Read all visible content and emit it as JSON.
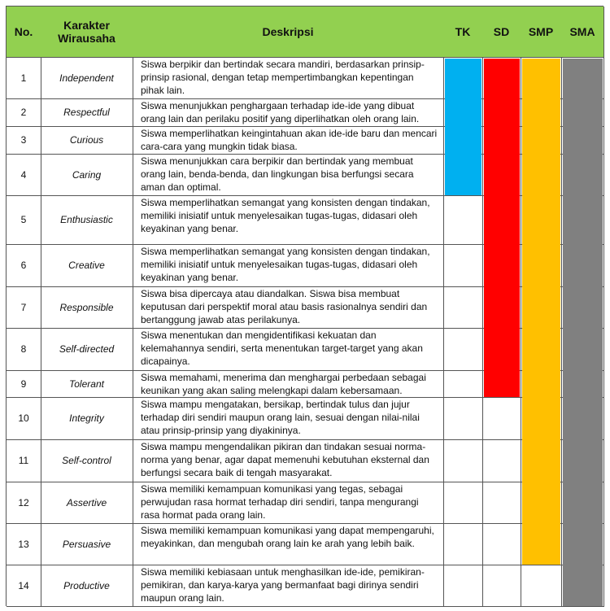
{
  "table": {
    "header": [
      "No.",
      "Karakter Wirausaha",
      "Deskripsi",
      "TK",
      "SD",
      "SMP",
      "SMA"
    ],
    "rows": [
      [
        1,
        "Independent",
        "Siswa berpikir dan bertindak secara mandiri, berdasarkan prinsip-prinsip rasional, dengan tetap mempertimbangkan kepentingan pihak lain."
      ],
      [
        2,
        "Respectful",
        "Siswa menunjukkan penghargaan terhadap ide-ide yang dibuat orang lain dan perilaku positif yang diperlihatkan oleh orang lain."
      ],
      [
        3,
        "Curious",
        "Siswa memperlihatkan keingintahuan akan ide-ide baru dan mencari cara-cara yang mungkin tidak biasa."
      ],
      [
        4,
        "Caring",
        "Siswa menunjukkan cara berpikir dan bertindak yang membuat orang lain, benda-benda, dan lingkungan bisa berfungsi secara aman dan optimal."
      ],
      [
        5,
        "Enthusiastic",
        "Siswa memperlihatkan semangat yang konsisten dengan tindakan, memiliki inisiatif untuk menyelesaikan tugas-tugas, didasari oleh keyakinan yang benar."
      ],
      [
        6,
        "Creative",
        "Siswa memperlihatkan semangat yang konsisten dengan tindakan, memiliki inisiatif untuk menyelesaikan tugas-tugas, didasari oleh keyakinan yang benar."
      ],
      [
        7,
        "Responsible",
        "Siswa bisa dipercaya atau diandalkan. Siswa bisa membuat keputusan dari perspektif moral atau basis rasionalnya sendiri dan bertanggung jawab atas perilakunya."
      ],
      [
        8,
        "Self-directed",
        "Siswa menentukan dan mengidentifikasi kekuatan dan kelemahannya sendiri, serta menentukan target-target yang akan dicapainya."
      ],
      [
        9,
        "Tolerant",
        "Siswa memahami, menerima dan menghargai perbedaan sebagai keunikan yang akan saling melengkapi dalam kebersamaan."
      ],
      [
        10,
        "Integrity",
        "Siswa mampu mengatakan, bersikap, bertindak tulus dan jujur terhadap diri sendiri maupun orang lain, sesuai dengan nilai-nilai atau prinsip-prinsip yang diyakininya."
      ],
      [
        11,
        "Self-control",
        "Siswa mampu mengendalikan pikiran dan tindakan sesuai norma-norma yang benar, agar dapat memenuhi kebutuhan eksternal dan berfungsi secara baik di tengah masyarakat."
      ],
      [
        12,
        "Assertive",
        "Siswa memiliki kemampuan komunikasi yang tegas, sebagai perwujudan rasa hormat terhadap diri sendiri, tanpa mengurangi rasa hormat pada orang lain."
      ],
      [
        13,
        "Persuasive",
        "Siswa memiliki kemampuan komunikasi yang dapat mempengaruhi, meyakinkan, dan mengubah orang lain ke arah yang lebih baik."
      ],
      [
        14,
        "Productive",
        "Siswa memiliki kebiasaan untuk menghasilkan ide-ide, pemikiran-pemikiran, dan karya-karya yang bermanfaat bagi dirinya sendiri maupun orang lain."
      ]
    ]
  }
}
